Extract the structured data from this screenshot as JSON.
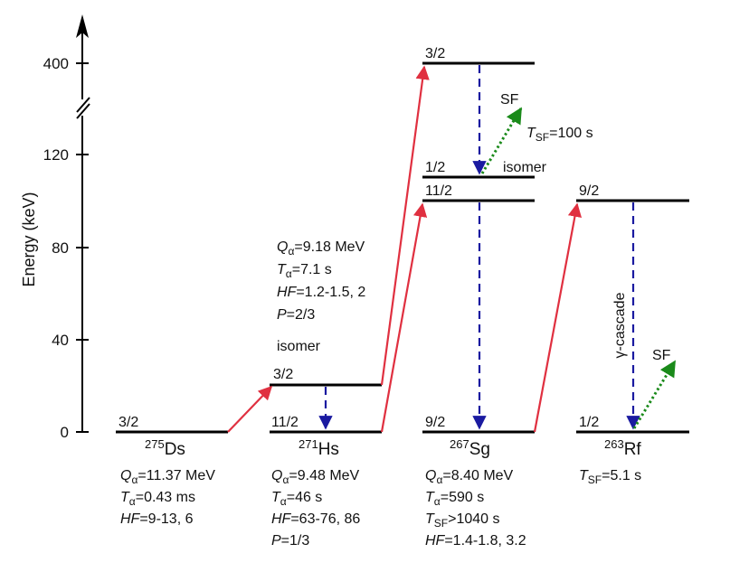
{
  "axis": {
    "ylabel": "Energy (keV)",
    "ticks": [
      "0",
      "40",
      "80",
      "120",
      "400"
    ]
  },
  "nuclei": {
    "ds": {
      "mass": "275",
      "symbol": "Ds",
      "levels": [
        "3/2"
      ],
      "props": [
        {
          "sym": "Q",
          "sub": "α",
          "val": "=11.37 MeV"
        },
        {
          "sym": "T",
          "sub": "α",
          "val": "=0.43 ms"
        },
        {
          "sym": "HF",
          "sub": "",
          "val": "=9-13, 6"
        }
      ]
    },
    "hs": {
      "mass": "271",
      "symbol": "Hs",
      "levels": [
        "11/2",
        "3/2"
      ],
      "props": [
        {
          "sym": "Q",
          "sub": "α",
          "val": "=9.48 MeV"
        },
        {
          "sym": "T",
          "sub": "α",
          "val": "=46 s"
        },
        {
          "sym": "HF",
          "sub": "",
          "val": "=63-76, 86"
        },
        {
          "sym": "P",
          "sub": "",
          "val": "=1/3"
        }
      ],
      "isomer": {
        "props": [
          {
            "sym": "Q",
            "sub": "α",
            "val": "=9.18 MeV"
          },
          {
            "sym": "T",
            "sub": "α",
            "val": "=7.1 s"
          },
          {
            "sym": "HF",
            "sub": "",
            "val": "=1.2-1.5, 2"
          },
          {
            "sym": "P",
            "sub": "",
            "val": "=2/3"
          }
        ],
        "label": "isomer"
      }
    },
    "sg": {
      "mass": "267",
      "symbol": "Sg",
      "levels": [
        "9/2",
        "11/2",
        "1/2",
        "3/2"
      ],
      "props": [
        {
          "sym": "Q",
          "sub": "α",
          "val": "=8.40 MeV"
        },
        {
          "sym": "T",
          "sub": "α",
          "val": "=590 s"
        },
        {
          "sym": "T",
          "sub": "SF",
          "val": ">1040 s"
        },
        {
          "sym": "HF",
          "sub": "",
          "val": "=1.4-1.8, 3.2"
        }
      ],
      "isomer": {
        "sf_label": "SF",
        "sf_half_life": {
          "sym": "T",
          "sub": "SF",
          "val": "=100 s"
        },
        "label": "isomer"
      }
    },
    "rf": {
      "mass": "263",
      "symbol": "Rf",
      "levels": [
        "1/2",
        "9/2"
      ],
      "props": [
        {
          "sym": "T",
          "sub": "SF",
          "val": "=5.1 s"
        }
      ],
      "gamma_label": "γ-cascade",
      "sf_label": "SF"
    }
  },
  "colors": {
    "alpha_arrow": "#e03040",
    "gamma_arrow": "#1a1aa0",
    "fission_arrow": "#1a8a1a"
  }
}
